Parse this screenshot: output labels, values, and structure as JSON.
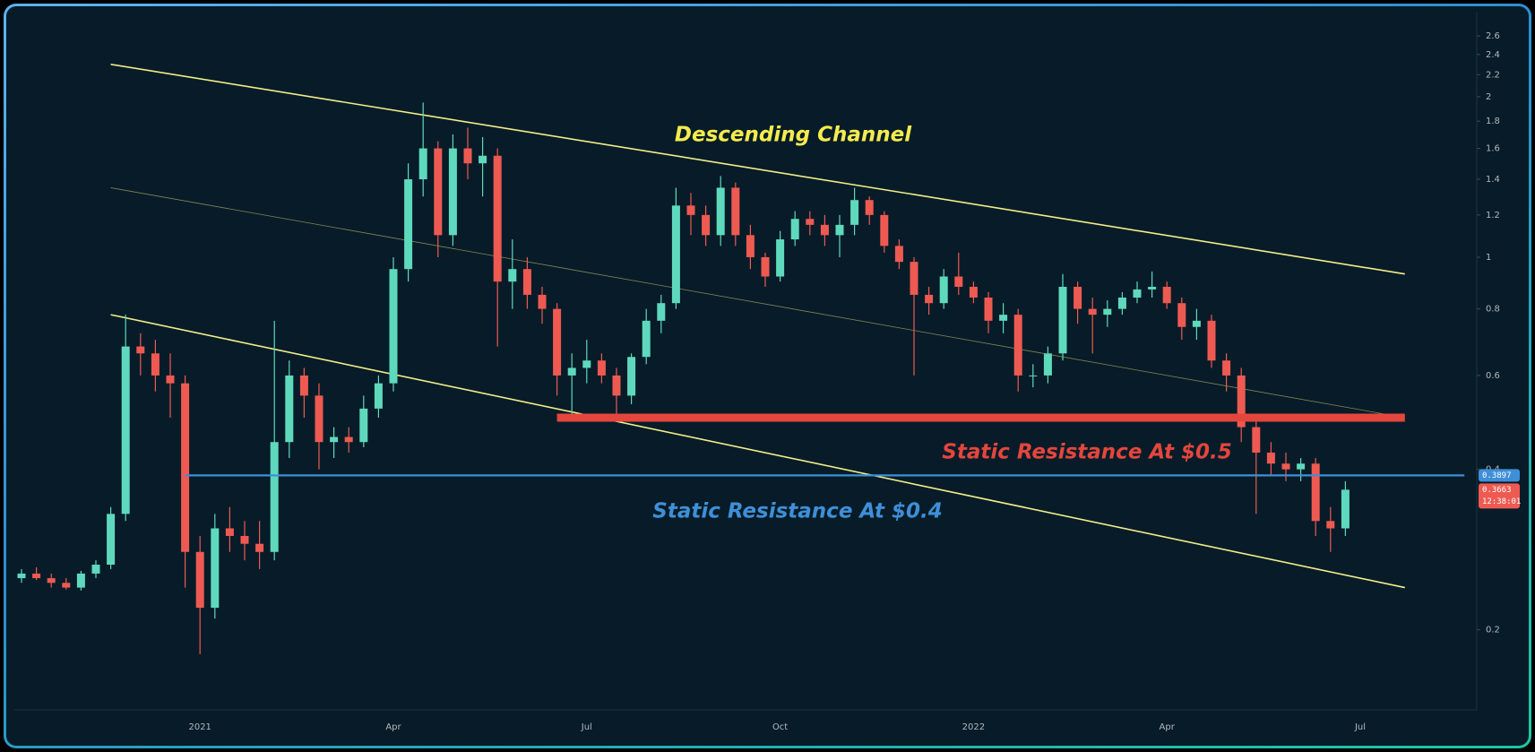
{
  "chart_data": {
    "type": "candlestick",
    "y_scale": "log",
    "ylim": [
      0.15,
      2.8
    ],
    "yticks": [
      0.2,
      0.4,
      0.6,
      0.8,
      1,
      1.2,
      1.4,
      1.6,
      1.8,
      2,
      2.2,
      2.4,
      2.6
    ],
    "grid": false,
    "up_color": "#5fd9bd",
    "down_color": "#ee5a52",
    "categories": [
      null,
      null,
      null,
      null,
      null,
      null,
      null,
      null,
      null,
      null,
      null,
      null,
      "2021",
      null,
      null,
      null,
      null,
      null,
      null,
      null,
      null,
      null,
      null,
      null,
      null,
      "Apr",
      null,
      null,
      null,
      null,
      null,
      null,
      null,
      null,
      null,
      null,
      null,
      null,
      "Jul",
      null,
      null,
      null,
      null,
      null,
      null,
      null,
      null,
      null,
      null,
      null,
      null,
      "Oct",
      null,
      null,
      null,
      null,
      null,
      null,
      null,
      null,
      null,
      null,
      null,
      null,
      "2022",
      null,
      null,
      null,
      null,
      null,
      null,
      null,
      null,
      null,
      null,
      null,
      null,
      "Apr",
      null,
      null,
      null,
      null,
      null,
      null,
      null,
      null,
      null,
      null,
      null,
      null,
      "Jul",
      null,
      null,
      null,
      null,
      null,
      null,
      null
    ],
    "candles": {
      "open": [
        0.25,
        0.255,
        0.25,
        0.245,
        0.24,
        0.255,
        0.265,
        0.33,
        0.68,
        0.66,
        0.6,
        0.58,
        0.28,
        0.22,
        0.31,
        0.3,
        0.29,
        0.28,
        0.45,
        0.6,
        0.55,
        0.45,
        0.46,
        0.45,
        0.52,
        0.58,
        0.95,
        1.4,
        1.6,
        1.1,
        1.6,
        1.5,
        1.55,
        0.9,
        0.95,
        0.85,
        0.8,
        0.6,
        0.62,
        0.64,
        0.6,
        0.55,
        0.65,
        0.76,
        0.82,
        1.25,
        1.2,
        1.1,
        1.35,
        1.1,
        1.0,
        0.92,
        1.08,
        1.18,
        1.15,
        1.1,
        1.15,
        1.28,
        1.2,
        1.05,
        0.98,
        0.85,
        0.82,
        0.92,
        0.88,
        0.84,
        0.76,
        0.78,
        0.6,
        0.6,
        0.66,
        0.88,
        0.8,
        0.78,
        0.8,
        0.84,
        0.87,
        0.88,
        0.82,
        0.74,
        0.76,
        0.64,
        0.6,
        0.48,
        0.43,
        0.41,
        0.4,
        0.41,
        0.32,
        0.31,
        null,
        null,
        null,
        null,
        null,
        null,
        null,
        null
      ],
      "high": [
        0.26,
        0.262,
        0.255,
        0.25,
        0.258,
        0.27,
        0.34,
        0.78,
        0.72,
        0.7,
        0.66,
        0.6,
        0.3,
        0.33,
        0.34,
        0.32,
        0.32,
        0.76,
        0.64,
        0.62,
        0.58,
        0.48,
        0.48,
        0.55,
        0.6,
        1.0,
        1.5,
        1.95,
        1.65,
        1.7,
        1.75,
        1.68,
        1.6,
        1.08,
        1.0,
        0.88,
        0.82,
        0.66,
        0.7,
        0.66,
        0.62,
        0.66,
        0.8,
        0.85,
        1.35,
        1.32,
        1.25,
        1.42,
        1.38,
        1.15,
        1.02,
        1.12,
        1.22,
        1.22,
        1.2,
        1.2,
        1.35,
        1.3,
        1.22,
        1.08,
        1.0,
        0.88,
        0.95,
        1.02,
        0.9,
        0.86,
        0.82,
        0.8,
        0.63,
        0.68,
        0.93,
        0.9,
        0.84,
        0.83,
        0.86,
        0.9,
        0.94,
        0.9,
        0.84,
        0.8,
        0.78,
        0.66,
        0.62,
        0.5,
        0.45,
        0.43,
        0.42,
        0.42,
        0.34,
        0.38,
        null,
        null,
        null,
        null,
        null,
        null,
        null,
        null
      ],
      "low": [
        0.245,
        0.248,
        0.24,
        0.238,
        0.237,
        0.25,
        0.26,
        0.32,
        0.6,
        0.56,
        0.5,
        0.24,
        0.18,
        0.21,
        0.28,
        0.27,
        0.26,
        0.27,
        0.42,
        0.5,
        0.4,
        0.42,
        0.43,
        0.44,
        0.5,
        0.56,
        0.9,
        1.3,
        1.0,
        1.05,
        1.4,
        1.3,
        0.68,
        0.8,
        0.8,
        0.75,
        0.55,
        0.5,
        0.58,
        0.58,
        0.5,
        0.53,
        0.63,
        0.72,
        0.8,
        1.1,
        1.05,
        1.05,
        1.05,
        0.95,
        0.88,
        0.9,
        1.05,
        1.1,
        1.05,
        1.0,
        1.1,
        1.15,
        1.02,
        0.95,
        0.6,
        0.78,
        0.8,
        0.85,
        0.82,
        0.72,
        0.72,
        0.56,
        0.57,
        0.58,
        0.64,
        0.75,
        0.66,
        0.74,
        0.78,
        0.82,
        0.84,
        0.8,
        0.7,
        0.7,
        0.62,
        0.56,
        0.45,
        0.33,
        0.39,
        0.38,
        0.38,
        0.3,
        0.28,
        0.3,
        null,
        null,
        null,
        null,
        null,
        null,
        null,
        null
      ],
      "close": [
        0.255,
        0.25,
        0.245,
        0.24,
        0.255,
        0.265,
        0.33,
        0.68,
        0.66,
        0.6,
        0.58,
        0.28,
        0.22,
        0.31,
        0.3,
        0.29,
        0.28,
        0.45,
        0.6,
        0.55,
        0.45,
        0.46,
        0.45,
        0.52,
        0.58,
        0.95,
        1.4,
        1.6,
        1.1,
        1.6,
        1.5,
        1.55,
        0.9,
        0.95,
        0.85,
        0.8,
        0.6,
        0.62,
        0.64,
        0.6,
        0.55,
        0.65,
        0.76,
        0.82,
        1.25,
        1.2,
        1.1,
        1.35,
        1.1,
        1.0,
        0.92,
        1.08,
        1.18,
        1.15,
        1.1,
        1.15,
        1.28,
        1.2,
        1.05,
        0.98,
        0.85,
        0.82,
        0.92,
        0.88,
        0.84,
        0.76,
        0.78,
        0.6,
        0.6,
        0.66,
        0.88,
        0.8,
        0.78,
        0.8,
        0.84,
        0.87,
        0.88,
        0.82,
        0.74,
        0.76,
        0.64,
        0.6,
        0.48,
        0.43,
        0.41,
        0.4,
        0.41,
        0.32,
        0.31,
        0.3663,
        null,
        null,
        null,
        null,
        null,
        null,
        null,
        null
      ]
    },
    "trendlines": [
      {
        "x": [
          6,
          93
        ],
        "y": [
          2.3,
          0.93
        ],
        "color": "#f3ee8a",
        "style": "solid"
      },
      {
        "x": [
          6,
          93
        ],
        "y": [
          1.35,
          0.5
        ],
        "color": "#b9b46a",
        "style": "faint"
      },
      {
        "x": [
          6,
          93
        ],
        "y": [
          0.78,
          0.24
        ],
        "color": "#f3ee8a",
        "style": "solid"
      }
    ],
    "levels": [
      {
        "value": 0.5,
        "x": [
          36,
          93
        ],
        "color": "#e4463d",
        "style": "heavy"
      },
      {
        "value": 0.3897,
        "x": [
          11,
          97
        ],
        "color": "#3f8fd8",
        "style": "normal"
      }
    ],
    "annotations": [
      {
        "text": "Descending Channel",
        "color": "#f4ec4e"
      },
      {
        "text": "Static Resistance At $0.5",
        "color": "#e4463d"
      },
      {
        "text": "Static Resistance At $0.4",
        "color": "#3f8fd8"
      }
    ],
    "countdown": "12:38:01"
  }
}
